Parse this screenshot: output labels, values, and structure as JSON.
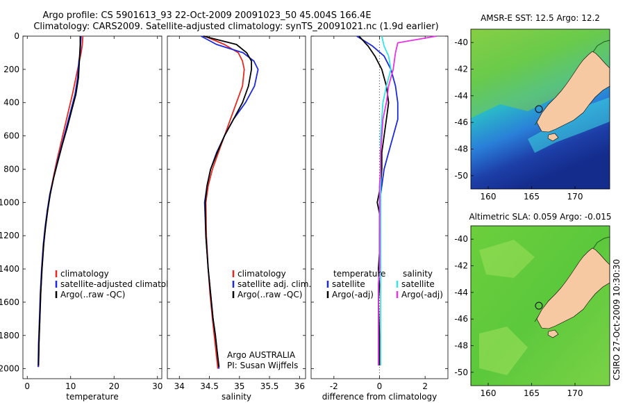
{
  "header": {
    "line1": "Argo profile: CS 5901613_93 22-Oct-2009 20091023_50 45.004S 166.4E",
    "line2": "Climatology: CARS2009. Satellite-adjusted climatology: synTS_20091021.nc (1.9d earlier)"
  },
  "credit": "CSIRO 27-Oct-2009 10:30:30",
  "colors": {
    "climatology": "#e8281e",
    "satellite": "#1a28e0",
    "argo": "#000000",
    "cyan": "#33e6e6",
    "magenta": "#e633e6",
    "land": "#f7c9a2"
  },
  "chart_data": [
    {
      "type": "line",
      "xlabel": "temperature",
      "xlim": [
        -1,
        31
      ],
      "xticks": [
        0,
        10,
        20,
        30
      ],
      "ylim": [
        0,
        2060
      ],
      "yticks": [
        0,
        200,
        400,
        600,
        800,
        1000,
        1200,
        1400,
        1600,
        1800,
        2000
      ],
      "y_inverted": true,
      "legend": {
        "placement": "lower-right",
        "entries": [
          "climatology",
          "satellite-adjusted climatology",
          "Argo(..raw -QC)"
        ]
      },
      "series": [
        {
          "name": "climatology",
          "color": "#e8281e",
          "x": [
            12.8,
            12.7,
            12.4,
            12.0,
            11.2,
            10.4,
            9.5,
            8.6,
            7.7,
            6.8,
            6.0,
            5.2,
            4.7,
            4.2,
            3.8,
            3.4,
            3.1,
            2.9,
            2.7,
            2.6
          ],
          "y": [
            0,
            50,
            100,
            150,
            250,
            350,
            450,
            550,
            650,
            750,
            850,
            950,
            1050,
            1150,
            1250,
            1400,
            1550,
            1700,
            1850,
            1990
          ]
        },
        {
          "name": "satellite-adjusted climatology",
          "color": "#1a28e0",
          "x": [
            12.4,
            12.3,
            12.2,
            11.9,
            11.6,
            11.0,
            10.0,
            9.0,
            8.0,
            7.0,
            6.1,
            5.2,
            4.6,
            4.1,
            3.7,
            3.3,
            3.0,
            2.8,
            2.6,
            2.5
          ],
          "y": [
            0,
            50,
            100,
            150,
            250,
            350,
            450,
            550,
            650,
            750,
            850,
            950,
            1050,
            1150,
            1250,
            1400,
            1550,
            1700,
            1850,
            1990
          ]
        },
        {
          "name": "Argo(..raw -QC)",
          "color": "#000000",
          "x": [
            12.2,
            12.2,
            12.1,
            12.0,
            11.8,
            11.2,
            10.2,
            9.2,
            8.1,
            7.1,
            6.1,
            5.3,
            4.7,
            4.2,
            3.8,
            3.4,
            3.1,
            2.9,
            2.7,
            2.6
          ],
          "y": [
            0,
            50,
            100,
            150,
            250,
            350,
            450,
            550,
            650,
            750,
            850,
            950,
            1050,
            1150,
            1250,
            1400,
            1550,
            1700,
            1850,
            1980
          ]
        }
      ]
    },
    {
      "type": "line",
      "xlabel": "salinity",
      "xlim": [
        33.8,
        36.1
      ],
      "xticks": [
        34,
        34.5,
        35,
        35.5,
        36
      ],
      "xticklabels": [
        "34",
        "34.5",
        "35",
        "35.5",
        "36"
      ],
      "ylim": [
        0,
        2060
      ],
      "y_inverted": true,
      "legend": {
        "placement": "lower-right",
        "entries": [
          "climatology",
          "satellite adj. clim.",
          "Argo(..raw -QC)"
        ]
      },
      "annotation": [
        "Argo AUSTRALIA",
        "PI: Susan Wijffels"
      ],
      "series": [
        {
          "name": "climatology",
          "color": "#e8281e",
          "x": [
            34.42,
            34.75,
            34.98,
            35.05,
            35.08,
            35.05,
            34.95,
            34.85,
            34.75,
            34.65,
            34.55,
            34.48,
            34.44,
            34.45,
            34.48,
            34.51,
            34.55,
            34.58,
            34.61,
            34.64
          ],
          "y": [
            0,
            50,
            100,
            150,
            200,
            300,
            400,
            500,
            600,
            700,
            800,
            900,
            1000,
            1200,
            1400,
            1550,
            1700,
            1800,
            1900,
            2000
          ]
        },
        {
          "name": "satellite adj. clim.",
          "color": "#1a28e0",
          "x": [
            34.36,
            34.62,
            35.06,
            35.24,
            35.31,
            35.25,
            35.1,
            34.9,
            34.75,
            34.62,
            34.52,
            34.46,
            34.42,
            34.44,
            34.48,
            34.52,
            34.56,
            34.6,
            34.63,
            34.66
          ],
          "y": [
            0,
            50,
            100,
            150,
            200,
            300,
            400,
            500,
            600,
            700,
            800,
            900,
            1000,
            1200,
            1400,
            1550,
            1700,
            1800,
            1900,
            2000
          ]
        },
        {
          "name": "Argo(..raw -QC)",
          "color": "#000000",
          "x": [
            34.4,
            34.95,
            35.12,
            35.2,
            35.2,
            35.15,
            35.05,
            34.9,
            34.75,
            34.63,
            34.52,
            34.46,
            34.43,
            34.44,
            34.48,
            34.52,
            34.56,
            34.6,
            34.63,
            34.66
          ],
          "y": [
            0,
            50,
            100,
            150,
            200,
            300,
            400,
            500,
            600,
            700,
            800,
            900,
            1000,
            1200,
            1400,
            1550,
            1700,
            1800,
            1900,
            1990
          ]
        }
      ]
    },
    {
      "type": "line",
      "xlabel": "difference from climatology",
      "xlim": [
        -3,
        3
      ],
      "xticks": [
        -2,
        0,
        2
      ],
      "ylim": [
        0,
        2060
      ],
      "y_inverted": true,
      "legend": {
        "placement": "lower-right",
        "columns": [
          {
            "title": "temperature",
            "entries": [
              "satellite",
              "Argo(-adj)"
            ]
          },
          {
            "title": "salinity",
            "entries": [
              "satellite",
              "Argo(-adj)"
            ]
          }
        ]
      },
      "series": [
        {
          "name": "temperature satellite",
          "color": "#1a28e0",
          "x": [
            -1.0,
            -0.3,
            0.2,
            0.5,
            0.7,
            0.8,
            0.8,
            0.6,
            0.4,
            0.2,
            0.1,
            0.0,
            0.0,
            0.0,
            0.0,
            0.0,
            -0.05,
            -0.05,
            -0.05,
            -0.05
          ],
          "y": [
            0,
            60,
            120,
            200,
            300,
            400,
            500,
            600,
            700,
            800,
            900,
            1000,
            1100,
            1200,
            1300,
            1400,
            1500,
            1600,
            1800,
            1980
          ]
        },
        {
          "name": "temperature Argo(-adj)",
          "color": "#000000",
          "x": [
            -0.9,
            -0.5,
            -0.2,
            0.1,
            0.3,
            0.4,
            0.3,
            0.2,
            0.1,
            0.1,
            0.05,
            -0.1,
            0.05,
            0.0,
            0.0,
            -0.05,
            0.0,
            -0.05,
            0.0,
            0.0
          ],
          "y": [
            0,
            60,
            120,
            200,
            300,
            400,
            500,
            600,
            700,
            800,
            900,
            1000,
            1100,
            1200,
            1300,
            1400,
            1500,
            1600,
            1800,
            1980
          ]
        },
        {
          "name": "salinity satellite",
          "color": "#33e6e6",
          "x": [
            0.1,
            0.2,
            0.4,
            0.5,
            0.3,
            0.15,
            0.1,
            0.05,
            0.05,
            0.05,
            0.05,
            0.05,
            0.05,
            0.05,
            0.05,
            0.05,
            0.05,
            0.05,
            0.05,
            0.05
          ],
          "y": [
            0,
            60,
            120,
            200,
            300,
            400,
            500,
            600,
            700,
            800,
            900,
            1000,
            1100,
            1200,
            1300,
            1400,
            1500,
            1600,
            1800,
            1980
          ]
        },
        {
          "name": "salinity Argo(-adj)",
          "color": "#e633e6",
          "x": [
            2.5,
            0.8,
            0.7,
            0.6,
            0.4,
            0.3,
            0.15,
            0.1,
            0.05,
            0.05,
            0.0,
            0.0,
            0.0,
            0.0,
            0.0,
            0.0,
            -0.05,
            -0.05,
            -0.05,
            -0.05
          ],
          "y": [
            0,
            40,
            100,
            200,
            300,
            400,
            500,
            600,
            700,
            800,
            900,
            1000,
            1100,
            1200,
            1300,
            1400,
            1500,
            1600,
            1800,
            1980
          ]
        }
      ]
    },
    {
      "type": "heatmap",
      "title": "AMSR-E SST: 12.5 Argo: 12.2",
      "xlim": [
        158,
        174
      ],
      "xticks": [
        160,
        165,
        170
      ],
      "ylim": [
        -51,
        -39
      ],
      "yticks": [
        -40,
        -42,
        -44,
        -46,
        -48,
        -50
      ],
      "marker": {
        "lon": 166.4,
        "lat": -45.0
      }
    },
    {
      "type": "heatmap",
      "title": "Altimetric SLA: 0.059 Argo: -0.015",
      "xlim": [
        158,
        174
      ],
      "xticks": [
        160,
        165,
        170
      ],
      "ylim": [
        -51,
        -39
      ],
      "yticks": [
        -40,
        -42,
        -44,
        -46,
        -48,
        -50
      ],
      "marker": {
        "lon": 166.4,
        "lat": -45.0
      }
    }
  ]
}
